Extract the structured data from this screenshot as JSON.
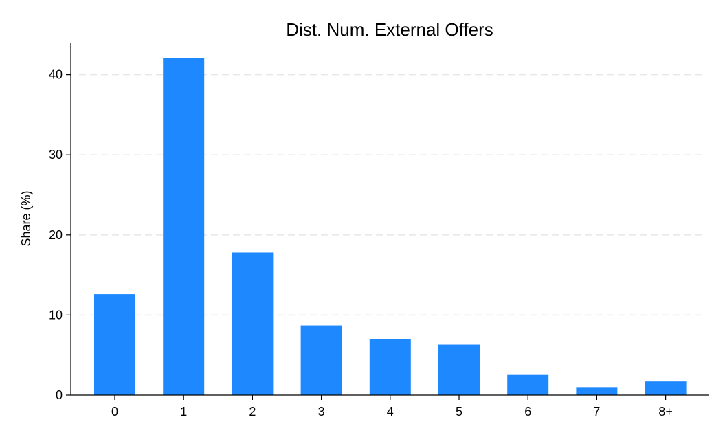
{
  "chart_data": {
    "type": "bar",
    "title": "Dist. Num. External Offers",
    "xlabel": "",
    "ylabel": "Share (%)",
    "categories": [
      "0",
      "1",
      "2",
      "3",
      "4",
      "5",
      "6",
      "7",
      "8+"
    ],
    "values": [
      12.6,
      42.1,
      17.8,
      8.7,
      7.0,
      6.3,
      2.6,
      1.0,
      1.7
    ],
    "ylim": [
      0,
      44
    ],
    "yticks": [
      0,
      10,
      20,
      30,
      40
    ],
    "grid": true,
    "bar_color": "#1e88ff",
    "grid_color": "#e6e6e6"
  }
}
